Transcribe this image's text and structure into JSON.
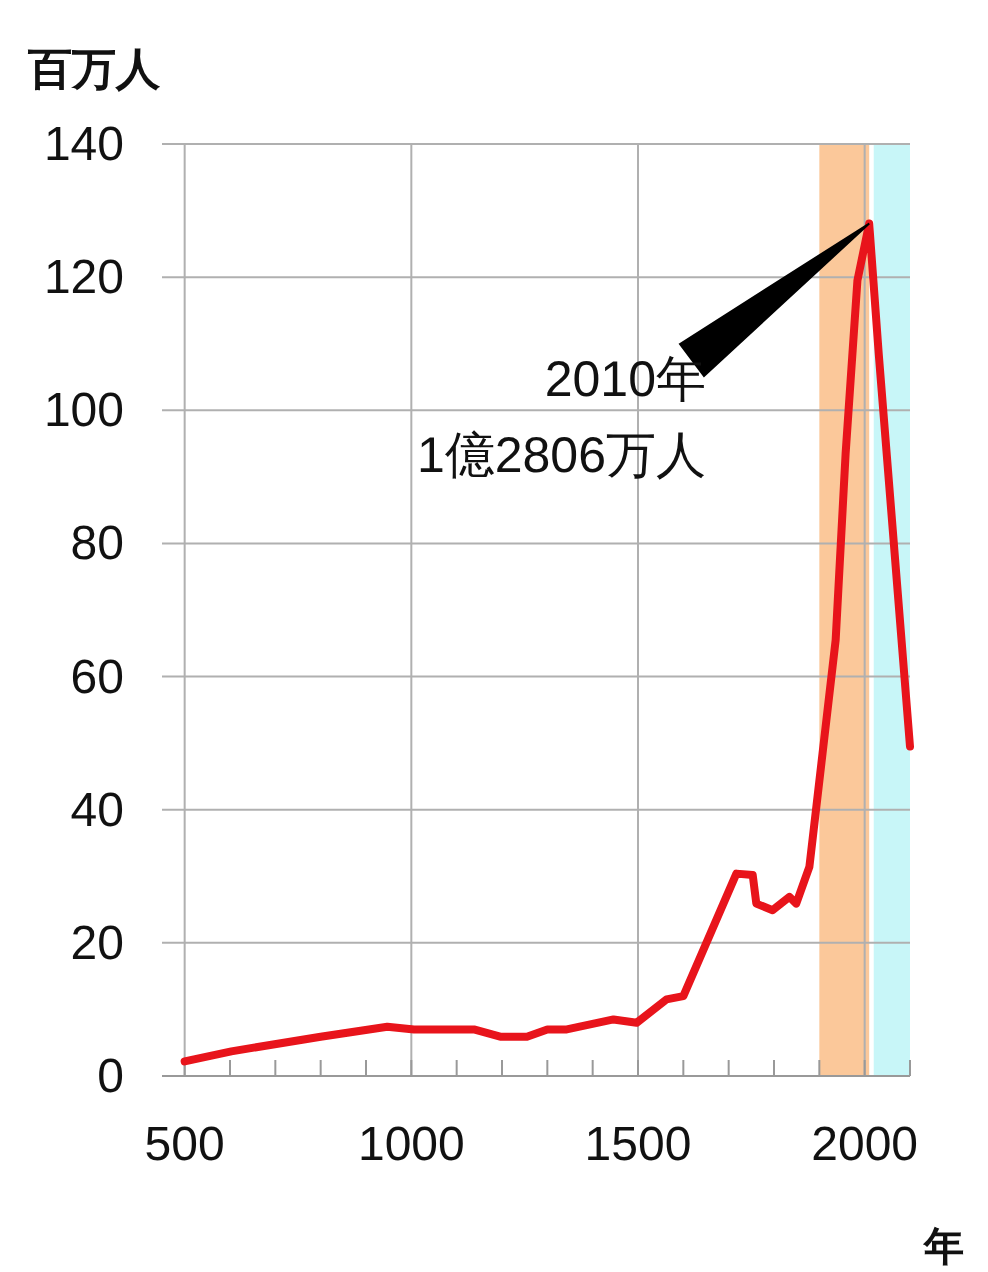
{
  "chart_data": {
    "type": "line",
    "ylabel": "百万人",
    "xlabel": "年",
    "x": [
      500,
      603,
      800,
      947,
      1006,
      1138,
      1196,
      1255,
      1300,
      1343,
      1446,
      1497,
      1563,
      1600,
      1717,
      1753,
      1761,
      1797,
      1834,
      1849,
      1878,
      1907,
      1936,
      1958,
      1984,
      2010,
      2031,
      2100
    ],
    "series": [
      {
        "color": "#e8141b",
        "values": [
          2.2,
          3.7,
          5.9,
          7.4,
          7.0,
          7.0,
          5.9,
          5.9,
          7.0,
          7.0,
          8.5,
          8.0,
          11.5,
          12,
          30.4,
          30.2,
          25.9,
          24.9,
          26.9,
          25.9,
          31.4,
          48.4,
          65.5,
          93.5,
          119.5,
          128.06,
          108.5,
          49.5
        ]
      }
    ],
    "xlim": [
      450,
      2100
    ],
    "ylim": [
      0,
      140
    ],
    "xticks": [
      500,
      {
        "value": 600,
        "label": null
      },
      {
        "value": 700,
        "label": null
      },
      {
        "value": 800,
        "label": null
      },
      {
        "value": 900,
        "label": null
      },
      1000,
      {
        "value": 1100,
        "label": null
      },
      {
        "value": 1200,
        "label": null
      },
      {
        "value": 1300,
        "label": null
      },
      {
        "value": 1400,
        "label": null
      },
      1500,
      {
        "value": 1600,
        "label": null
      },
      {
        "value": 1700,
        "label": null
      },
      {
        "value": 1800,
        "label": null
      },
      {
        "value": 1900,
        "label": null
      },
      2000,
      {
        "value": 2100,
        "label": null
      }
    ],
    "yticks": [
      0,
      20,
      40,
      60,
      80,
      100,
      120,
      140
    ],
    "grid": true,
    "bands": [
      {
        "axis": "x",
        "from": 1900,
        "to": 2010,
        "color": "#fbc89a"
      },
      {
        "axis": "x",
        "from": 2020,
        "to": 2100,
        "color": "#c8f6f8"
      }
    ],
    "annotations": [
      "2010年\n1億2806万人"
    ],
    "marker": "none",
    "line_style": "solid"
  }
}
